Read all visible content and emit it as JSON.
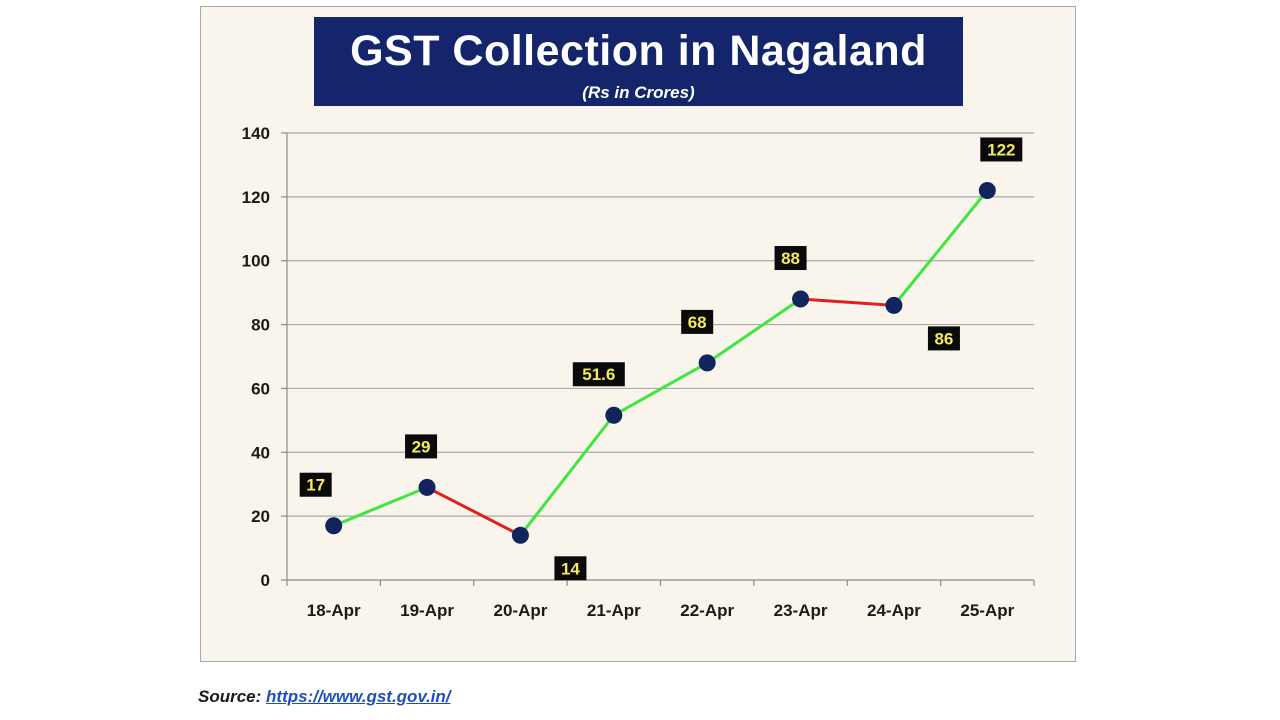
{
  "source": {
    "label": "Source:",
    "url": "https://www.gst.gov.in/"
  },
  "colors": {
    "title_bg": "#14256b",
    "up_line": "#3fe63f",
    "down_line": "#e02020",
    "marker": "#12245e",
    "label_bg": "#0a0a0a",
    "label_text": "#f5e95a",
    "plot_bg": "#f9f5ec"
  },
  "chart_data": {
    "type": "line",
    "title": "GST Collection in Nagaland",
    "subtitle": "(Rs in Crores)",
    "categories": [
      "18-Apr",
      "19-Apr",
      "20-Apr",
      "21-Apr",
      "22-Apr",
      "23-Apr",
      "24-Apr",
      "25-Apr"
    ],
    "values": [
      17,
      29,
      14,
      51.6,
      68,
      88,
      86,
      122
    ],
    "data_labels": [
      "17",
      "29",
      "14",
      "51.6",
      "68",
      "88",
      "86",
      "122"
    ],
    "label_position": [
      "above",
      "above",
      "below",
      "above",
      "above",
      "above",
      "below",
      "above"
    ],
    "segment_colors": "green when increasing, red when decreasing",
    "ylim": [
      0,
      140
    ],
    "yticks": [
      0,
      20,
      40,
      60,
      80,
      100,
      120,
      140
    ],
    "grid": true,
    "legend": "none"
  }
}
